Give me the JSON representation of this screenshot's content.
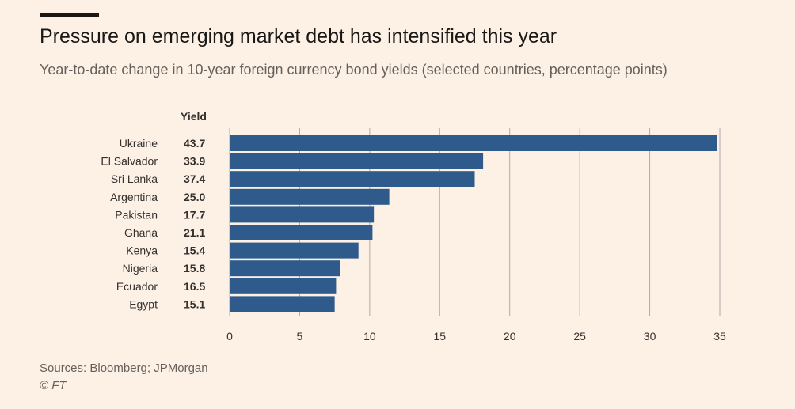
{
  "header": {
    "title": "Pressure on emerging market debt has intensified this year",
    "subtitle": "Year-to-date change in 10-year foreign currency bond yields (selected countries, percentage points)"
  },
  "footer": {
    "sources": "Sources: Bloomberg; JPMorgan",
    "copyright": "© FT"
  },
  "colors": {
    "background": "#fdf1e6",
    "bar": "#2e5b8c",
    "gridline": "#b0aba6",
    "text": "#33302e"
  },
  "chart_data": {
    "type": "bar",
    "orientation": "horizontal",
    "yield_column_header": "Yield",
    "categories": [
      "Ukraine",
      "El Salvador",
      "Sri Lanka",
      "Argentina",
      "Pakistan",
      "Ghana",
      "Kenya",
      "Nigeria",
      "Ecuador",
      "Egypt"
    ],
    "yields": [
      "43.7",
      "33.9",
      "37.4",
      "25.0",
      "17.7",
      "21.1",
      "15.4",
      "15.8",
      "16.5",
      "15.1"
    ],
    "values": [
      34.8,
      18.1,
      17.5,
      11.4,
      10.3,
      10.2,
      9.2,
      7.9,
      7.6,
      7.5
    ],
    "xlim": [
      0,
      35
    ],
    "xticks": [
      0,
      5,
      10,
      15,
      20,
      25,
      30,
      35
    ],
    "grid": true
  }
}
